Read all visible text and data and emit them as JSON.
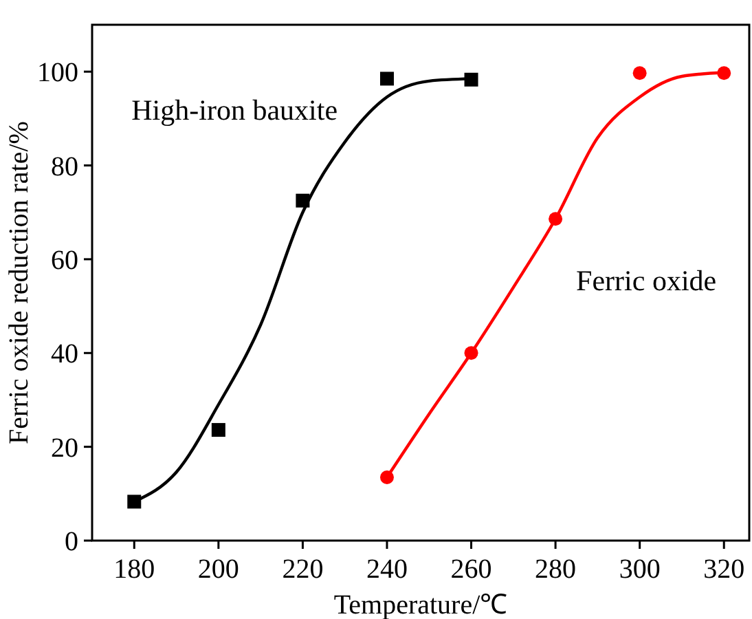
{
  "chart_data": {
    "type": "scatter",
    "xlabel": "Temperature/℃",
    "ylabel": "Ferric oxide reduction rate/%",
    "xlim": [
      170,
      326
    ],
    "xticks": [
      180,
      200,
      220,
      240,
      260,
      280,
      300,
      320
    ],
    "ylim": [
      0,
      110
    ],
    "yticks": [
      0,
      20,
      40,
      60,
      80,
      100
    ],
    "grid": false,
    "series": [
      {
        "name": "High-iron bauxite",
        "color": "#000000",
        "marker": "square",
        "x": [
          180,
          200,
          220,
          240,
          260
        ],
        "values": [
          8.3,
          23.6,
          72.5,
          98.5,
          98.3
        ]
      },
      {
        "name": "Ferric oxide",
        "color": "#ff0000",
        "marker": "circle",
        "x": [
          240,
          260,
          280,
          300,
          320
        ],
        "values": [
          13.5,
          40,
          68.6,
          99.7,
          99.7
        ]
      },
      {
        "type": "line",
        "color": "#000000",
        "marker": "none",
        "line_style": "solid",
        "x": [
          180,
          190,
          200,
          210,
          220,
          230,
          240,
          250,
          260
        ],
        "values": [
          8.3,
          14.6,
          29,
          46,
          70,
          85,
          94.6,
          98,
          98.5
        ]
      },
      {
        "type": "line",
        "color": "#ff0000",
        "marker": "none",
        "line_style": "solid",
        "x": [
          240,
          250,
          260,
          270,
          280,
          290,
          300,
          310,
          320
        ],
        "values": [
          13.5,
          27,
          40,
          54,
          68.6,
          85.9,
          94.6,
          99,
          99.8
        ]
      }
    ]
  }
}
